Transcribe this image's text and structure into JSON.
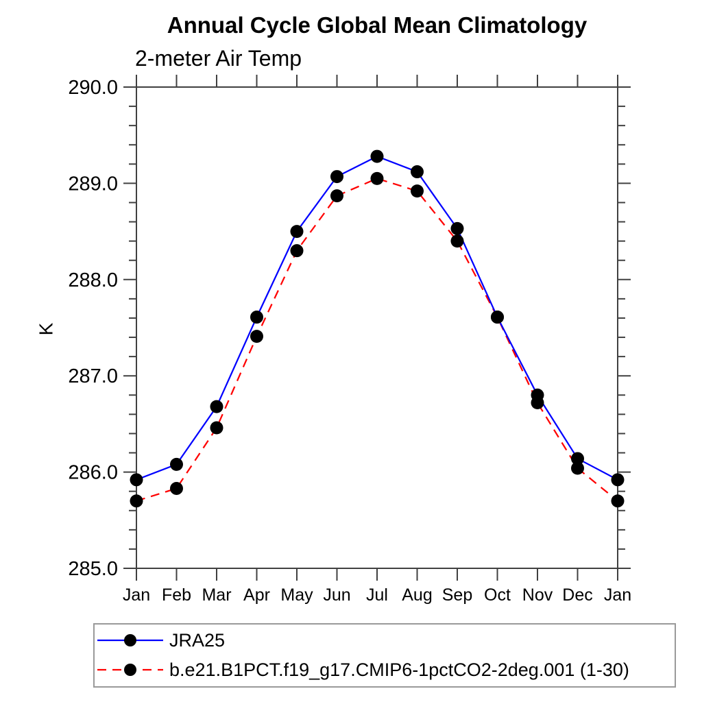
{
  "chart_data": {
    "type": "line",
    "title": "Annual Cycle Global Mean Climatology",
    "subtitle": "2-meter Air Temp",
    "ylabel": "K",
    "ylim": [
      285.0,
      290.0
    ],
    "ytick_major_step": 1.0,
    "ytick_minor_step": 0.2,
    "ytick_labels": [
      "290.0",
      "289.0",
      "288.0",
      "287.0",
      "286.0",
      "285.0"
    ],
    "x_categories": [
      "Jan",
      "Feb",
      "Mar",
      "Apr",
      "May",
      "Jun",
      "Jul",
      "Aug",
      "Sep",
      "Oct",
      "Nov",
      "Dec",
      "Jan"
    ],
    "grid": false,
    "legend_position": "bottom-left-box",
    "marker": {
      "shape": "circle",
      "color": "#000000"
    },
    "series": [
      {
        "name": "JRA25",
        "color": "#0000ff",
        "line_style": "solid",
        "values": [
          285.92,
          286.08,
          286.68,
          287.61,
          288.5,
          289.07,
          289.28,
          289.12,
          288.53,
          287.61,
          286.8,
          286.14,
          285.92
        ]
      },
      {
        "name": "b.e21.B1PCT.f19_g17.CMIP6-1pctCO2-2deg.001 (1-30)",
        "color": "#ff0000",
        "line_style": "dashed",
        "values": [
          285.7,
          285.83,
          286.46,
          287.41,
          288.3,
          288.87,
          289.05,
          288.92,
          288.4,
          287.61,
          286.72,
          286.04,
          285.7
        ]
      }
    ]
  },
  "colors": {
    "axis": "#404040",
    "legend_border": "#999999",
    "background": "#ffffff"
  }
}
